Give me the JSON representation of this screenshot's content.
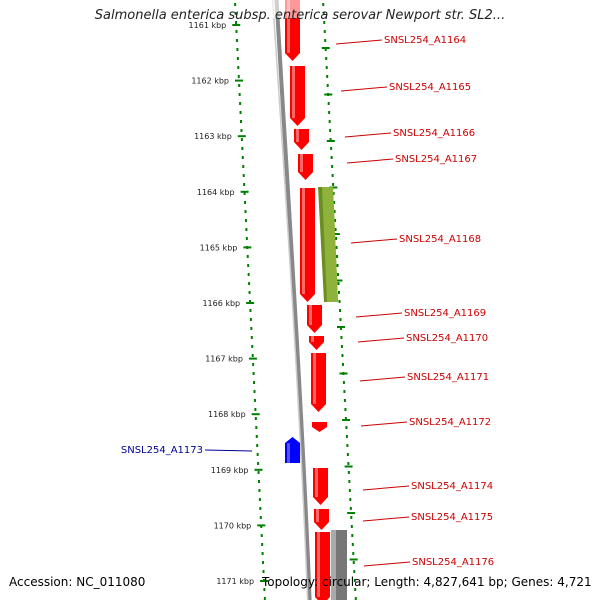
{
  "title": "Salmonella enterica subsp. enterica serovar Newport str. SL2...",
  "accession": "Accession: NC_011080",
  "topology": "Topology: circular; Length: 4,827,641 bp; Genes: 4,721",
  "colors": {
    "forward_gene": "#ff0000",
    "reverse_gene": "#0000ff",
    "other_feature_green": "#6b8e23",
    "other_feature_gray": "#777777",
    "backbone": "#888888",
    "ticks": "#008000",
    "forward_label": "#cc0000",
    "reverse_label": "#000099"
  },
  "kbp_ticks": [
    {
      "value": 1161,
      "label": "1161 kbp"
    },
    {
      "value": 1162,
      "label": "1162 kbp"
    },
    {
      "value": 1163,
      "label": "1163 kbp"
    },
    {
      "value": 1164,
      "label": "1164 kbp"
    },
    {
      "value": 1165,
      "label": "1165 kbp"
    },
    {
      "value": 1166,
      "label": "1166 kbp"
    },
    {
      "value": 1167,
      "label": "1167 kbp"
    },
    {
      "value": 1168,
      "label": "1168 kbp"
    },
    {
      "value": 1169,
      "label": "1169 kbp"
    },
    {
      "value": 1170,
      "label": "1170 kbp"
    },
    {
      "value": 1171,
      "label": "1171 kbp"
    }
  ],
  "genes": [
    {
      "name": "SNSL254_A1164",
      "strand": "forward"
    },
    {
      "name": "SNSL254_A1165",
      "strand": "forward"
    },
    {
      "name": "SNSL254_A1166",
      "strand": "forward"
    },
    {
      "name": "SNSL254_A1167",
      "strand": "forward"
    },
    {
      "name": "SNSL254_A1168",
      "strand": "forward"
    },
    {
      "name": "SNSL254_A1169",
      "strand": "forward"
    },
    {
      "name": "SNSL254_A1170",
      "strand": "forward"
    },
    {
      "name": "SNSL254_A1171",
      "strand": "forward"
    },
    {
      "name": "SNSL254_A1172",
      "strand": "forward"
    },
    {
      "name": "SNSL254_A1173",
      "strand": "reverse"
    },
    {
      "name": "SNSL254_A1174",
      "strand": "forward"
    },
    {
      "name": "SNSL254_A1175",
      "strand": "forward"
    },
    {
      "name": "SNSL254_A1176",
      "strand": "forward"
    }
  ]
}
